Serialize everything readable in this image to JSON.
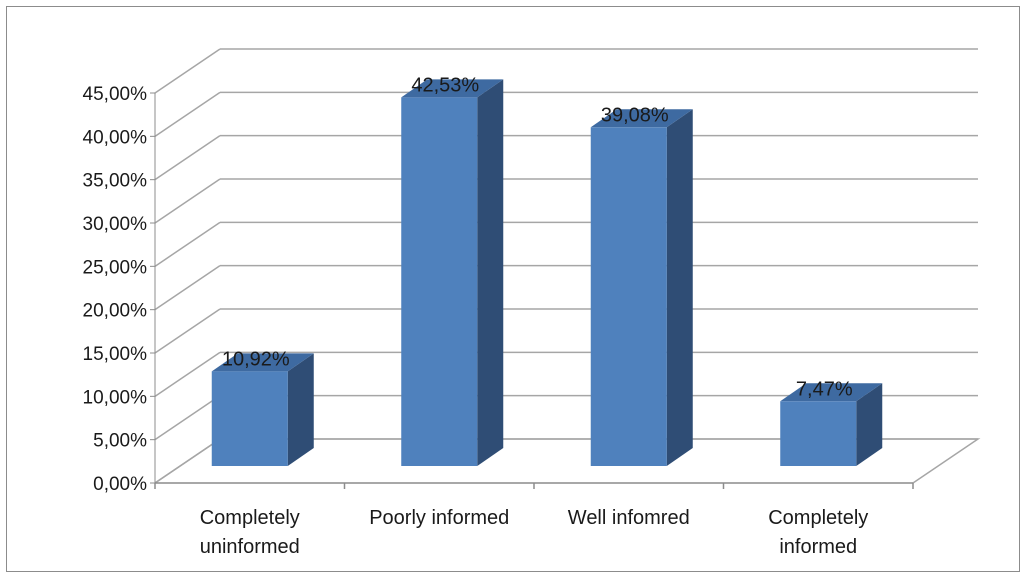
{
  "chart_data": {
    "type": "bar",
    "title": "",
    "xlabel": "",
    "ylabel": "",
    "ylim": [
      0,
      45
    ],
    "ytick_step": 5,
    "ytick_labels": [
      "0,00%",
      "5,00%",
      "10,00%",
      "15,00%",
      "20,00%",
      "25,00%",
      "30,00%",
      "35,00%",
      "40,00%",
      "45,00%"
    ],
    "categories": [
      [
        "Completely",
        "uninformed"
      ],
      [
        "Poorly informed"
      ],
      [
        "Well infomred"
      ],
      [
        "Completely",
        "informed"
      ]
    ],
    "values": [
      10.92,
      42.53,
      39.08,
      7.47
    ],
    "data_labels": [
      "10,92%",
      "42,53%",
      "39,08%",
      "7,47%"
    ],
    "grid": true,
    "legend": "none",
    "style": "3d-column",
    "colors": {
      "bar_front": "#4f81bd",
      "bar_side": "#2f4d75",
      "bar_top": "#3e6aa1",
      "gridline": "#a6a6a6",
      "axis": "#8c8c8c"
    }
  }
}
